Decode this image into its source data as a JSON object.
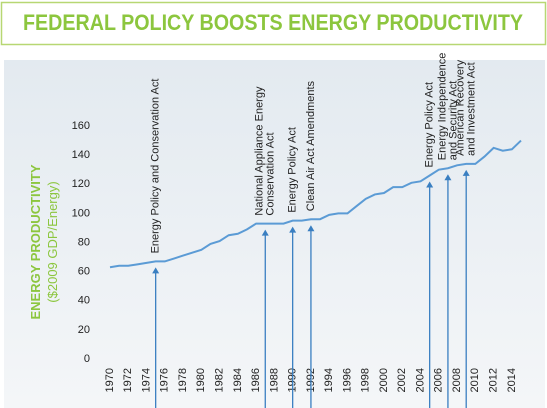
{
  "chart_data": {
    "type": "line",
    "title": "FEDERAL POLICY BOOSTS ENERGY PRODUCTIVITY",
    "y_label": [
      "ENERGY PRODUCTIVITY",
      "($2009 GDP/Energy)"
    ],
    "x": [
      1970,
      1971,
      1972,
      1973,
      1974,
      1975,
      1976,
      1977,
      1978,
      1979,
      1980,
      1981,
      1982,
      1983,
      1984,
      1985,
      1986,
      1987,
      1988,
      1989,
      1990,
      1991,
      1992,
      1993,
      1994,
      1995,
      1996,
      1997,
      1998,
      1999,
      2000,
      2001,
      2002,
      2003,
      2004,
      2005,
      2006,
      2007,
      2008,
      2009,
      2010,
      2011,
      2012,
      2013,
      2014,
      2015
    ],
    "series": [
      {
        "color": "#5b9bd5",
        "values": [
          63,
          64,
          64,
          65,
          66,
          67,
          67,
          69,
          71,
          73,
          75,
          79,
          81,
          85,
          86,
          89,
          93,
          93,
          93,
          93,
          95,
          95,
          96,
          96,
          99,
          100,
          100,
          105,
          110,
          113,
          114,
          118,
          118,
          121,
          122,
          126,
          130,
          131,
          133,
          134,
          134,
          139,
          145,
          143,
          144,
          150
        ]
      }
    ],
    "xlim": [
      1970,
      2015
    ],
    "xticks": [
      1970,
      1972,
      1974,
      1976,
      1978,
      1980,
      1982,
      1984,
      1986,
      1988,
      1990,
      1992,
      1994,
      1996,
      1998,
      2000,
      2002,
      2004,
      2006,
      2008,
      2010,
      2012,
      2014
    ],
    "ylim": [
      0,
      160
    ],
    "yticks": [
      0,
      20,
      40,
      60,
      80,
      100,
      120,
      140,
      160
    ],
    "grid": false,
    "annotations": [
      {
        "x": 1975,
        "lines": [
          "Energy Policy and Conservation Act"
        ]
      },
      {
        "x": 1987,
        "lines": [
          "National Appliance Energy",
          "Conservation Act"
        ]
      },
      {
        "x": 1990,
        "lines": [
          "Energy Policy Act"
        ]
      },
      {
        "x": 1992,
        "lines": [
          "Clean Air Act Amendments"
        ]
      },
      {
        "x": 2005,
        "lines": [
          "Energy Policy Act"
        ]
      },
      {
        "x": 2007,
        "lines": [
          "Energy Independence",
          "and Security Act"
        ]
      },
      {
        "x": 2009,
        "lines": [
          "American Recovery",
          "and Investment Act"
        ]
      }
    ]
  }
}
